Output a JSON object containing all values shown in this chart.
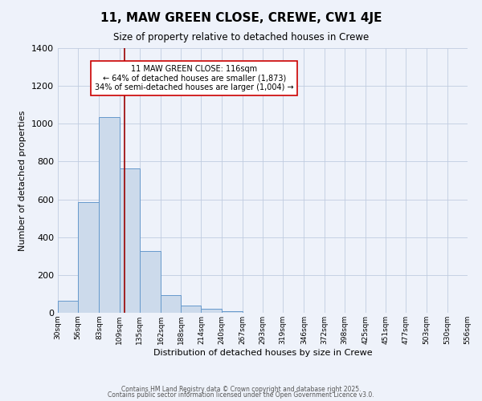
{
  "title": "11, MAW GREEN CLOSE, CREWE, CW1 4JE",
  "subtitle": "Size of property relative to detached houses in Crewe",
  "xlabel": "Distribution of detached houses by size in Crewe",
  "ylabel": "Number of detached properties",
  "bar_color": "#ccdaeb",
  "bar_edge_color": "#6699cc",
  "background_color": "#eef2fa",
  "grid_color": "#c0cce0",
  "bin_edges": [
    30,
    56,
    83,
    109,
    135,
    162,
    188,
    214,
    240,
    267,
    293,
    319,
    346,
    372,
    398,
    425,
    451,
    477,
    503,
    530,
    556
  ],
  "bar_heights": [
    65,
    585,
    1035,
    765,
    325,
    95,
    40,
    20,
    10,
    0,
    0,
    0,
    0,
    0,
    0,
    0,
    0,
    0,
    0,
    0
  ],
  "tick_labels": [
    "30sqm",
    "56sqm",
    "83sqm",
    "109sqm",
    "135sqm",
    "162sqm",
    "188sqm",
    "214sqm",
    "240sqm",
    "267sqm",
    "293sqm",
    "319sqm",
    "346sqm",
    "372sqm",
    "398sqm",
    "425sqm",
    "451sqm",
    "477sqm",
    "503sqm",
    "530sqm",
    "556sqm"
  ],
  "ylim": [
    0,
    1400
  ],
  "yticks": [
    0,
    200,
    400,
    600,
    800,
    1000,
    1200,
    1400
  ],
  "vline_x": 116,
  "vline_color": "#990000",
  "annotation_title": "11 MAW GREEN CLOSE: 116sqm",
  "annotation_line1": "← 64% of detached houses are smaller (1,873)",
  "annotation_line2": "34% of semi-detached houses are larger (1,004) →",
  "annotation_box_color": "#ffffff",
  "annotation_box_edge": "#cc0000",
  "footer1": "Contains HM Land Registry data © Crown copyright and database right 2025.",
  "footer2": "Contains public sector information licensed under the Open Government Licence v3.0."
}
